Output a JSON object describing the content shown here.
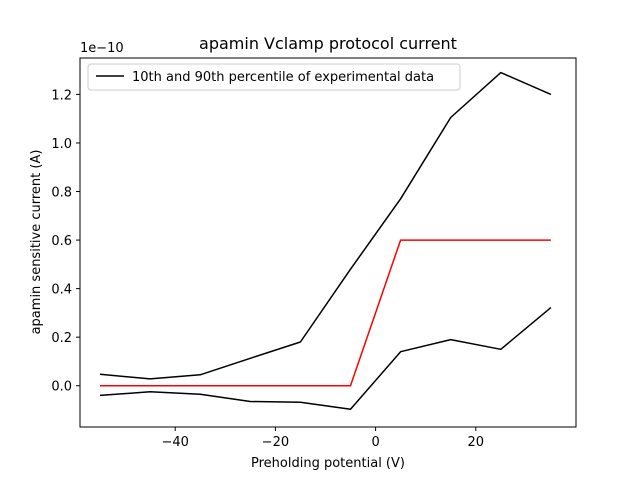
{
  "chart_data": {
    "type": "line",
    "title": "apamin Vclamp protocol current",
    "xlabel": "Preholding potential (V)",
    "ylabel": "apamin sensitive current (A)",
    "y_offset_label": "1e−10",
    "y_scale": 1e-10,
    "xlim": [
      -59,
      40
    ],
    "ylim": [
      -0.17,
      1.35
    ],
    "x_ticks": [
      -40,
      -20,
      0,
      20
    ],
    "x_tick_labels": [
      "−40",
      "−20",
      "0",
      "20"
    ],
    "y_ticks": [
      0.0,
      0.2,
      0.4,
      0.6,
      0.8,
      1.0,
      1.2
    ],
    "y_tick_labels": [
      "0.0",
      "0.2",
      "0.4",
      "0.6",
      "0.8",
      "1.0",
      "1.2"
    ],
    "grid": false,
    "legend": {
      "position": "top-left",
      "entries": [
        {
          "label": "10th and 90th percentile of experimental data",
          "color": "#000000"
        }
      ]
    },
    "series": [
      {
        "color": "#000000",
        "x": [
          -55,
          -45,
          -35,
          -25,
          -15,
          -5,
          5,
          15,
          25,
          35
        ],
        "y": [
          0.047,
          0.028,
          0.045,
          0.113,
          0.18,
          0.48,
          0.77,
          1.105,
          1.29,
          1.2
        ]
      },
      {
        "color": "#000000",
        "x": [
          -55,
          -45,
          -35,
          -25,
          -15,
          -5,
          5,
          15,
          25,
          35
        ],
        "y": [
          -0.04,
          -0.025,
          -0.035,
          -0.065,
          -0.068,
          -0.097,
          0.14,
          0.19,
          0.15,
          0.322
        ]
      },
      {
        "color": "#ff0000",
        "x": [
          -55,
          -45,
          -35,
          -25,
          -15,
          -5,
          5,
          15,
          25,
          35
        ],
        "y": [
          0.0,
          0.0,
          0.0,
          0.0,
          0.0,
          0.0,
          0.6,
          0.6,
          0.6,
          0.6
        ]
      }
    ]
  }
}
